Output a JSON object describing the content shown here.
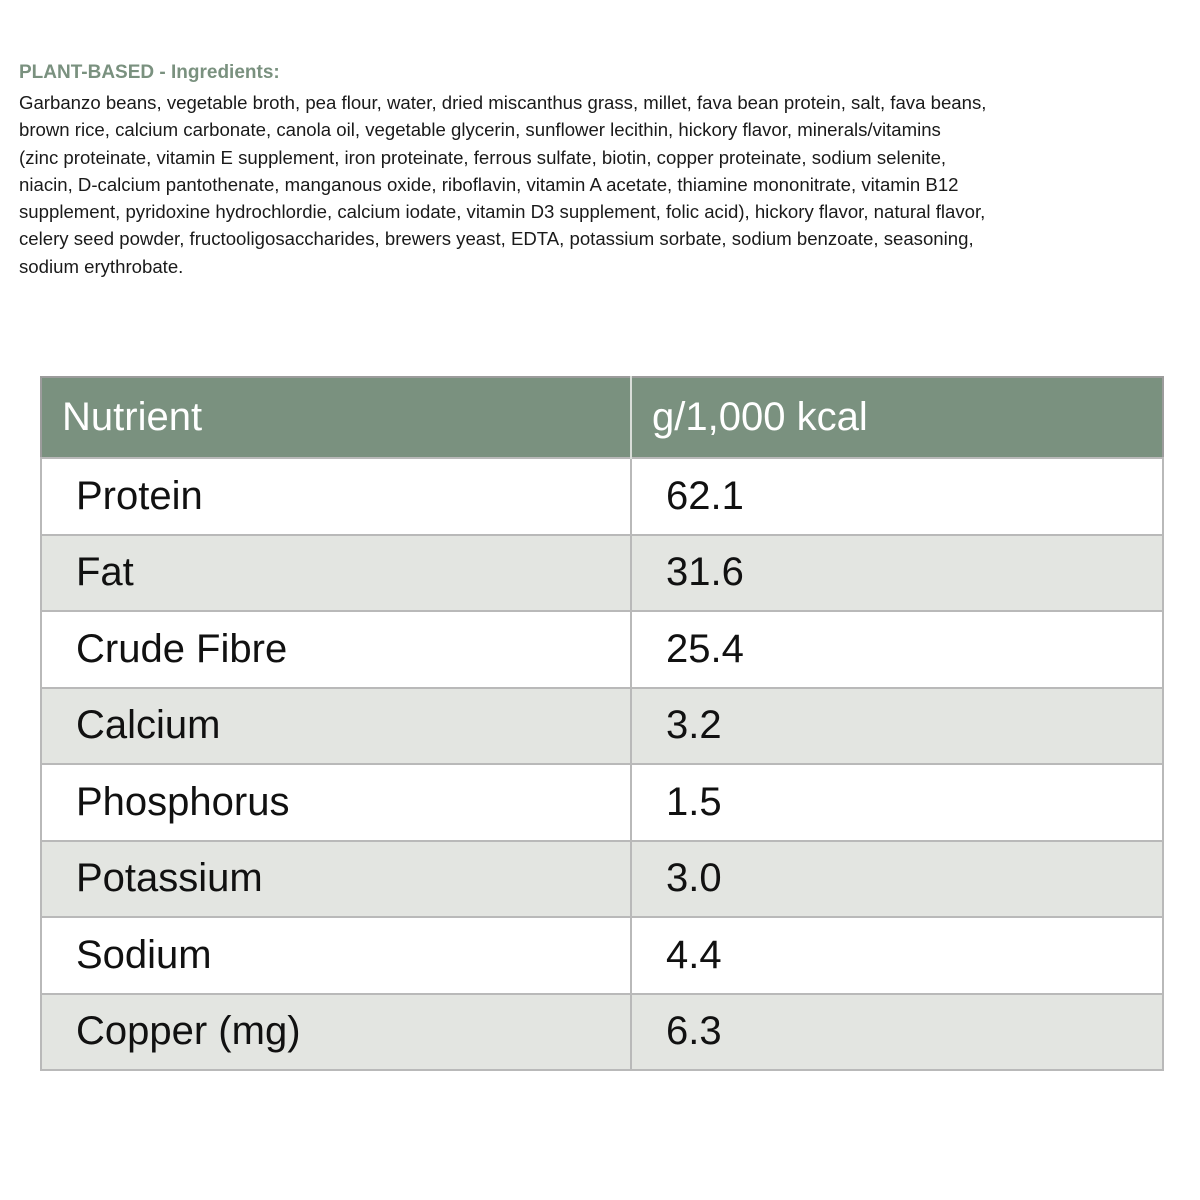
{
  "ingredients": {
    "heading": "PLANT-BASED - Ingredients:",
    "lines": [
      "Garbanzo beans, vegetable broth, pea flour, water, dried miscanthus grass, millet, fava bean protein, salt, fava beans,",
      "brown rice, calcium carbonate, canola oil, vegetable glycerin, sunflower lecithin, hickory flavor, minerals/vitamins",
      "(zinc proteinate, vitamin E supplement, iron proteinate, ferrous sulfate, biotin, copper proteinate, sodium selenite,",
      "niacin, D-calcium pantothenate, manganous oxide, riboflavin, vitamin A acetate, thiamine mononitrate, vitamin B12",
      "supplement, pyridoxine hydrochlordie, calcium iodate, vitamin D3 supplement, folic acid), hickory flavor, natural flavor,",
      "celery seed powder, fructooligosaccharides, brewers yeast, EDTA, potassium sorbate, sodium benzoate, seasoning,",
      "sodium erythrobate."
    ]
  },
  "table": {
    "headers": [
      "Nutrient",
      "g/1,000 kcal"
    ],
    "rows": [
      {
        "nutrient": "Protein",
        "value": "62.1"
      },
      {
        "nutrient": "Fat",
        "value": "31.6"
      },
      {
        "nutrient": "Crude Fibre",
        "value": "25.4"
      },
      {
        "nutrient": "Calcium",
        "value": "3.2"
      },
      {
        "nutrient": "Phosphorus",
        "value": "1.5"
      },
      {
        "nutrient": "Potassium",
        "value": "3.0"
      },
      {
        "nutrient": "Sodium",
        "value": "4.4"
      },
      {
        "nutrient": "Copper (mg)",
        "value": "6.3"
      }
    ]
  },
  "colors": {
    "accent": "#7a917f",
    "alt_row": "#e3e5e1"
  }
}
